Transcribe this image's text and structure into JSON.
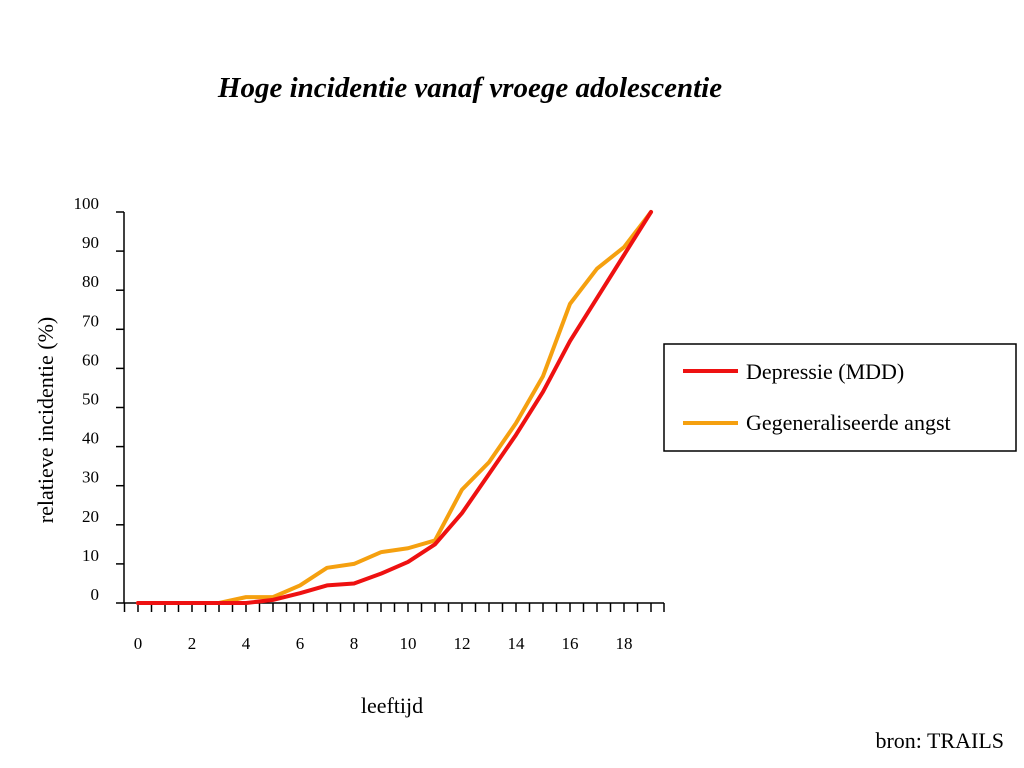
{
  "chart_data": {
    "type": "line",
    "title": "Hoge incidentie vanaf vroege adolescentie",
    "xlabel": "leeftijd",
    "ylabel": "relatieve incidentie (%)",
    "xlim": [
      0,
      19
    ],
    "ylim": [
      0,
      100
    ],
    "x_tick_labels": [
      "0",
      "2",
      "4",
      "6",
      "8",
      "10",
      "12",
      "14",
      "16",
      "18"
    ],
    "y_tick_labels": [
      "0",
      "10",
      "20",
      "30",
      "40",
      "50",
      "60",
      "70",
      "80",
      "90",
      "100"
    ],
    "grid": false,
    "legend_position": "right",
    "x": [
      0,
      1,
      2,
      3,
      4,
      5,
      6,
      7,
      8,
      9,
      10,
      11,
      12,
      13,
      14,
      15,
      16,
      17,
      18,
      19
    ],
    "series": [
      {
        "name": "Depressie (MDD)",
        "color": "#ee1111",
        "values": [
          0,
          0,
          0,
          0,
          0,
          0.8,
          2.5,
          4.5,
          5,
          7.5,
          10.5,
          15,
          23,
          33,
          43,
          54,
          67,
          78,
          89,
          100
        ]
      },
      {
        "name": "Gegeneraliseerde angst",
        "color": "#f5a00f",
        "values": [
          0,
          0,
          0,
          0,
          1.5,
          1.5,
          4.5,
          9,
          10,
          13,
          14,
          16,
          29,
          36,
          46,
          58,
          76.5,
          85.5,
          91,
          100
        ]
      }
    ]
  },
  "source": "bron: TRAILS"
}
